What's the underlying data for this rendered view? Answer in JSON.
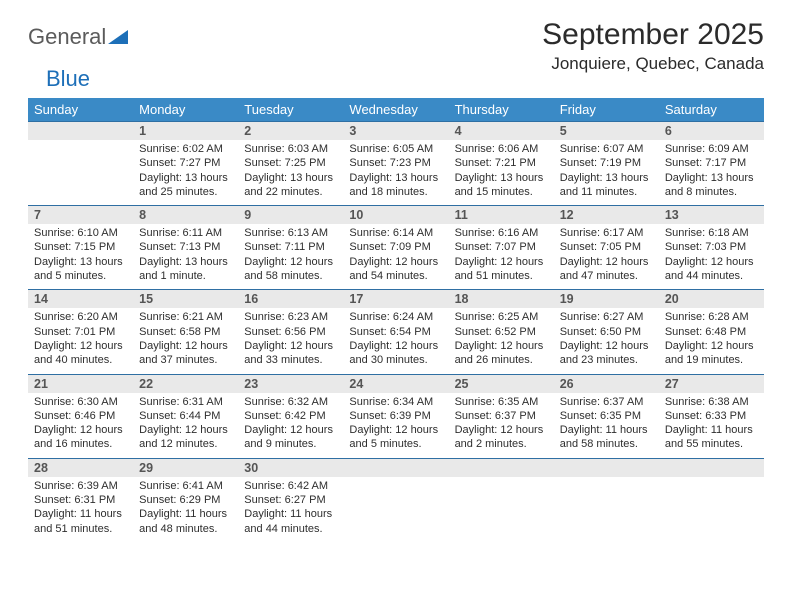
{
  "logo": {
    "general": "General",
    "blue": "Blue"
  },
  "month_title": "September 2025",
  "location": "Jonquiere, Quebec, Canada",
  "colors": {
    "header_bg": "#3a8ac6",
    "row_rule": "#2f6fa3",
    "daynum_bg": "#e9e9e9",
    "text": "#2e2e2e",
    "logo_blue": "#1d6fb8"
  },
  "weekdays": [
    "Sunday",
    "Monday",
    "Tuesday",
    "Wednesday",
    "Thursday",
    "Friday",
    "Saturday"
  ],
  "weeks": [
    [
      {
        "n": "",
        "sunrise": "",
        "sunset": "",
        "daylight1": "",
        "daylight2": ""
      },
      {
        "n": "1",
        "sunrise": "Sunrise: 6:02 AM",
        "sunset": "Sunset: 7:27 PM",
        "daylight1": "Daylight: 13 hours",
        "daylight2": "and 25 minutes."
      },
      {
        "n": "2",
        "sunrise": "Sunrise: 6:03 AM",
        "sunset": "Sunset: 7:25 PM",
        "daylight1": "Daylight: 13 hours",
        "daylight2": "and 22 minutes."
      },
      {
        "n": "3",
        "sunrise": "Sunrise: 6:05 AM",
        "sunset": "Sunset: 7:23 PM",
        "daylight1": "Daylight: 13 hours",
        "daylight2": "and 18 minutes."
      },
      {
        "n": "4",
        "sunrise": "Sunrise: 6:06 AM",
        "sunset": "Sunset: 7:21 PM",
        "daylight1": "Daylight: 13 hours",
        "daylight2": "and 15 minutes."
      },
      {
        "n": "5",
        "sunrise": "Sunrise: 6:07 AM",
        "sunset": "Sunset: 7:19 PM",
        "daylight1": "Daylight: 13 hours",
        "daylight2": "and 11 minutes."
      },
      {
        "n": "6",
        "sunrise": "Sunrise: 6:09 AM",
        "sunset": "Sunset: 7:17 PM",
        "daylight1": "Daylight: 13 hours",
        "daylight2": "and 8 minutes."
      }
    ],
    [
      {
        "n": "7",
        "sunrise": "Sunrise: 6:10 AM",
        "sunset": "Sunset: 7:15 PM",
        "daylight1": "Daylight: 13 hours",
        "daylight2": "and 5 minutes."
      },
      {
        "n": "8",
        "sunrise": "Sunrise: 6:11 AM",
        "sunset": "Sunset: 7:13 PM",
        "daylight1": "Daylight: 13 hours",
        "daylight2": "and 1 minute."
      },
      {
        "n": "9",
        "sunrise": "Sunrise: 6:13 AM",
        "sunset": "Sunset: 7:11 PM",
        "daylight1": "Daylight: 12 hours",
        "daylight2": "and 58 minutes."
      },
      {
        "n": "10",
        "sunrise": "Sunrise: 6:14 AM",
        "sunset": "Sunset: 7:09 PM",
        "daylight1": "Daylight: 12 hours",
        "daylight2": "and 54 minutes."
      },
      {
        "n": "11",
        "sunrise": "Sunrise: 6:16 AM",
        "sunset": "Sunset: 7:07 PM",
        "daylight1": "Daylight: 12 hours",
        "daylight2": "and 51 minutes."
      },
      {
        "n": "12",
        "sunrise": "Sunrise: 6:17 AM",
        "sunset": "Sunset: 7:05 PM",
        "daylight1": "Daylight: 12 hours",
        "daylight2": "and 47 minutes."
      },
      {
        "n": "13",
        "sunrise": "Sunrise: 6:18 AM",
        "sunset": "Sunset: 7:03 PM",
        "daylight1": "Daylight: 12 hours",
        "daylight2": "and 44 minutes."
      }
    ],
    [
      {
        "n": "14",
        "sunrise": "Sunrise: 6:20 AM",
        "sunset": "Sunset: 7:01 PM",
        "daylight1": "Daylight: 12 hours",
        "daylight2": "and 40 minutes."
      },
      {
        "n": "15",
        "sunrise": "Sunrise: 6:21 AM",
        "sunset": "Sunset: 6:58 PM",
        "daylight1": "Daylight: 12 hours",
        "daylight2": "and 37 minutes."
      },
      {
        "n": "16",
        "sunrise": "Sunrise: 6:23 AM",
        "sunset": "Sunset: 6:56 PM",
        "daylight1": "Daylight: 12 hours",
        "daylight2": "and 33 minutes."
      },
      {
        "n": "17",
        "sunrise": "Sunrise: 6:24 AM",
        "sunset": "Sunset: 6:54 PM",
        "daylight1": "Daylight: 12 hours",
        "daylight2": "and 30 minutes."
      },
      {
        "n": "18",
        "sunrise": "Sunrise: 6:25 AM",
        "sunset": "Sunset: 6:52 PM",
        "daylight1": "Daylight: 12 hours",
        "daylight2": "and 26 minutes."
      },
      {
        "n": "19",
        "sunrise": "Sunrise: 6:27 AM",
        "sunset": "Sunset: 6:50 PM",
        "daylight1": "Daylight: 12 hours",
        "daylight2": "and 23 minutes."
      },
      {
        "n": "20",
        "sunrise": "Sunrise: 6:28 AM",
        "sunset": "Sunset: 6:48 PM",
        "daylight1": "Daylight: 12 hours",
        "daylight2": "and 19 minutes."
      }
    ],
    [
      {
        "n": "21",
        "sunrise": "Sunrise: 6:30 AM",
        "sunset": "Sunset: 6:46 PM",
        "daylight1": "Daylight: 12 hours",
        "daylight2": "and 16 minutes."
      },
      {
        "n": "22",
        "sunrise": "Sunrise: 6:31 AM",
        "sunset": "Sunset: 6:44 PM",
        "daylight1": "Daylight: 12 hours",
        "daylight2": "and 12 minutes."
      },
      {
        "n": "23",
        "sunrise": "Sunrise: 6:32 AM",
        "sunset": "Sunset: 6:42 PM",
        "daylight1": "Daylight: 12 hours",
        "daylight2": "and 9 minutes."
      },
      {
        "n": "24",
        "sunrise": "Sunrise: 6:34 AM",
        "sunset": "Sunset: 6:39 PM",
        "daylight1": "Daylight: 12 hours",
        "daylight2": "and 5 minutes."
      },
      {
        "n": "25",
        "sunrise": "Sunrise: 6:35 AM",
        "sunset": "Sunset: 6:37 PM",
        "daylight1": "Daylight: 12 hours",
        "daylight2": "and 2 minutes."
      },
      {
        "n": "26",
        "sunrise": "Sunrise: 6:37 AM",
        "sunset": "Sunset: 6:35 PM",
        "daylight1": "Daylight: 11 hours",
        "daylight2": "and 58 minutes."
      },
      {
        "n": "27",
        "sunrise": "Sunrise: 6:38 AM",
        "sunset": "Sunset: 6:33 PM",
        "daylight1": "Daylight: 11 hours",
        "daylight2": "and 55 minutes."
      }
    ],
    [
      {
        "n": "28",
        "sunrise": "Sunrise: 6:39 AM",
        "sunset": "Sunset: 6:31 PM",
        "daylight1": "Daylight: 11 hours",
        "daylight2": "and 51 minutes."
      },
      {
        "n": "29",
        "sunrise": "Sunrise: 6:41 AM",
        "sunset": "Sunset: 6:29 PM",
        "daylight1": "Daylight: 11 hours",
        "daylight2": "and 48 minutes."
      },
      {
        "n": "30",
        "sunrise": "Sunrise: 6:42 AM",
        "sunset": "Sunset: 6:27 PM",
        "daylight1": "Daylight: 11 hours",
        "daylight2": "and 44 minutes."
      },
      {
        "n": "",
        "sunrise": "",
        "sunset": "",
        "daylight1": "",
        "daylight2": ""
      },
      {
        "n": "",
        "sunrise": "",
        "sunset": "",
        "daylight1": "",
        "daylight2": ""
      },
      {
        "n": "",
        "sunrise": "",
        "sunset": "",
        "daylight1": "",
        "daylight2": ""
      },
      {
        "n": "",
        "sunrise": "",
        "sunset": "",
        "daylight1": "",
        "daylight2": ""
      }
    ]
  ]
}
